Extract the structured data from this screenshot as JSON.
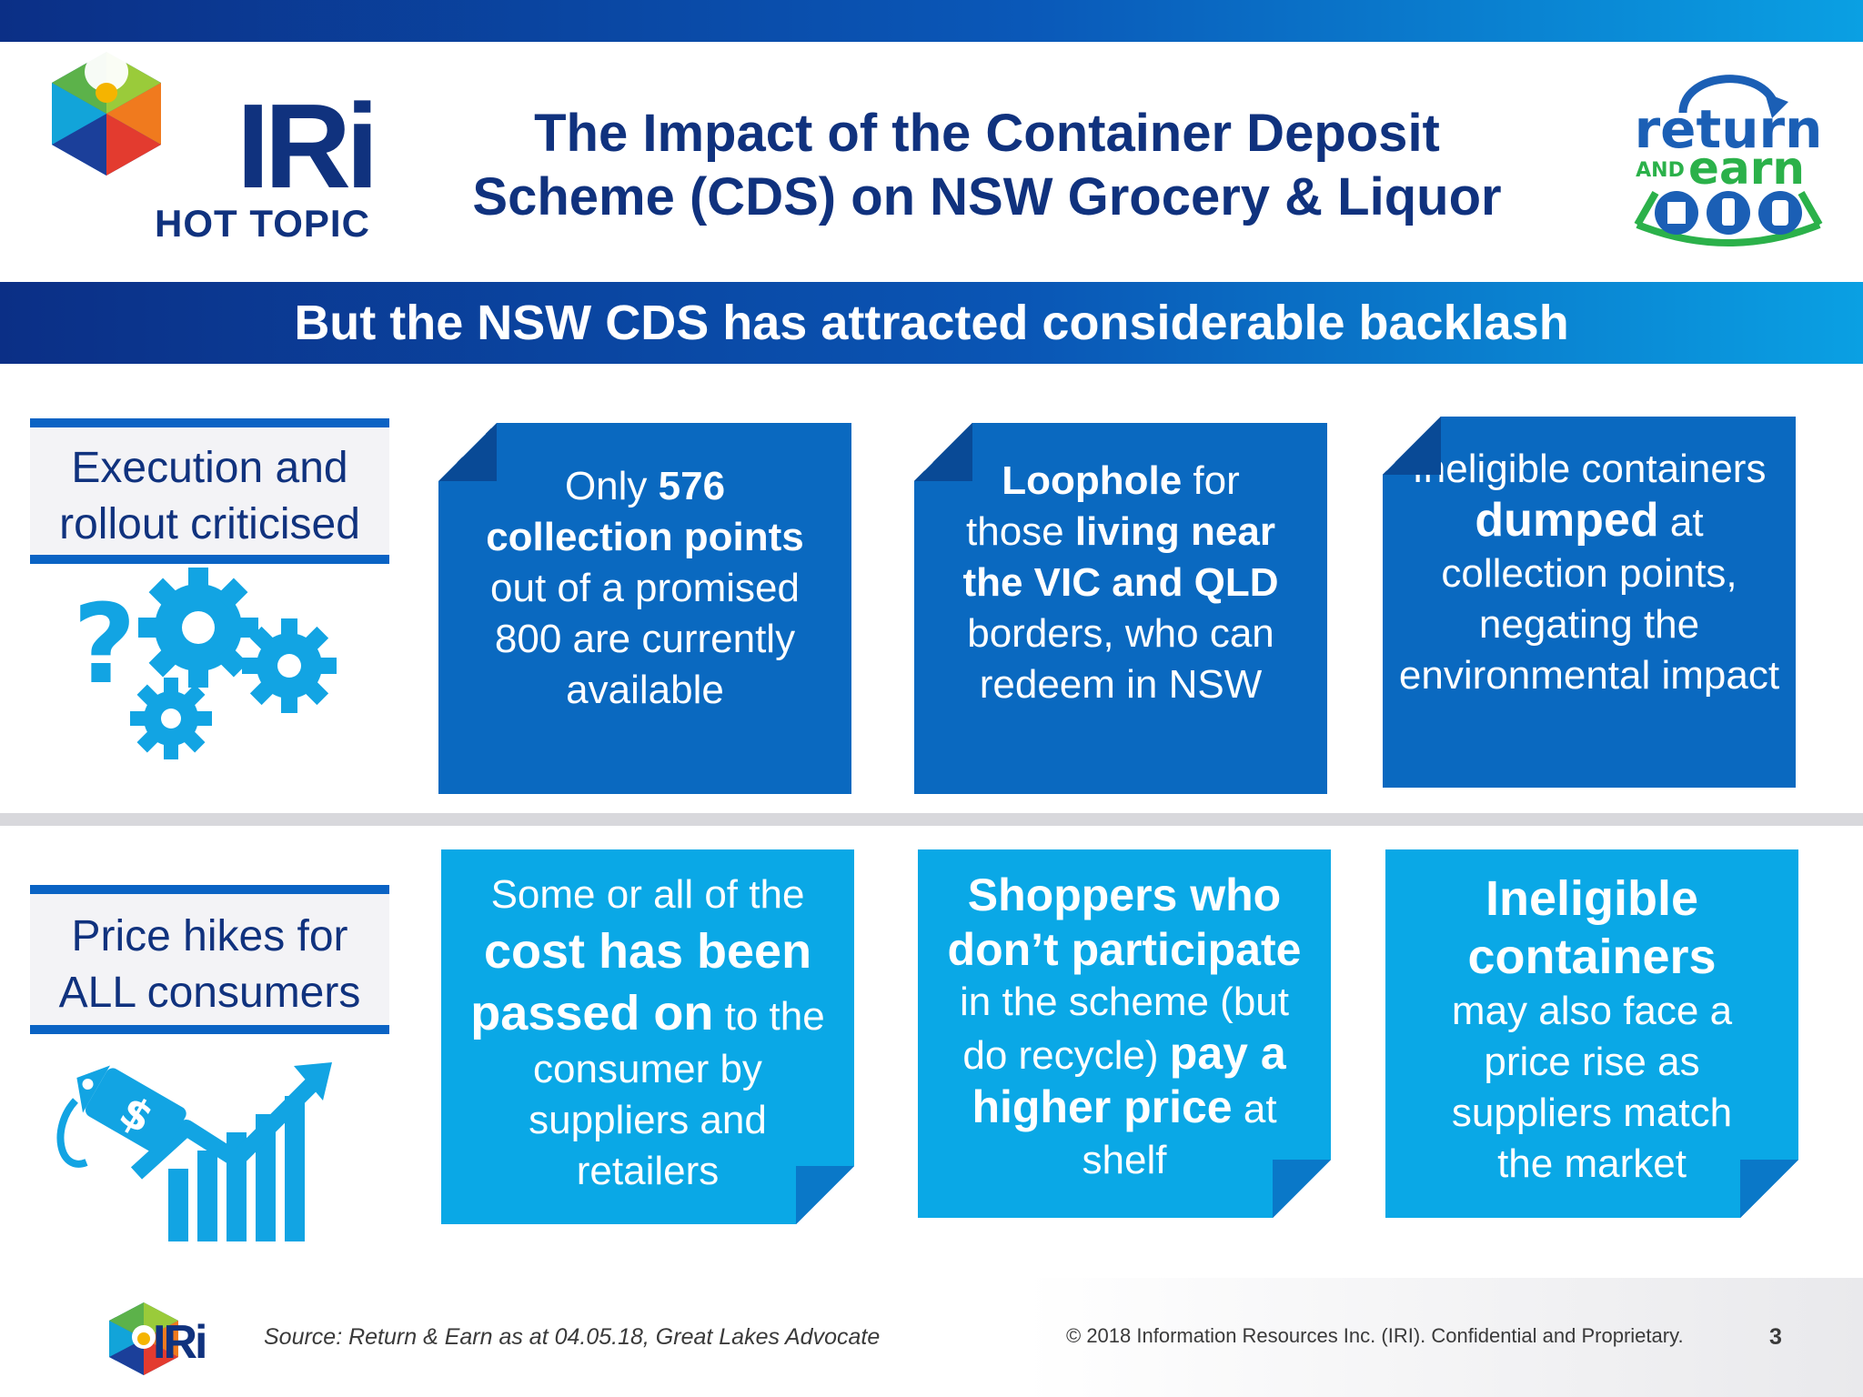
{
  "header": {
    "logo_text": "IRi",
    "logo_subtitle": "HOT TOPIC",
    "title_line1": "The Impact of the Container Deposit",
    "title_line2": "Scheme (CDS) on NSW Grocery & Liquor",
    "partner_logo": {
      "word1": "return",
      "word2": "AND",
      "word3": "earn"
    }
  },
  "banner": "But the NSW CDS has attracted considerable backlash",
  "rows": [
    {
      "label_line1": "Execution and",
      "label_line2": "rollout criticised",
      "illustration_icon": "gears-question-icon",
      "cards": [
        {
          "parts": [
            "Only ",
            "576",
            "collection points",
            "out of a promised",
            "800 are currently",
            "available"
          ]
        },
        {
          "parts": [
            "Loophole",
            " for",
            "those ",
            "living near",
            "the VIC and QLD",
            "borders, who can",
            "redeem in NSW"
          ]
        },
        {
          "parts": [
            "Ineligible containers",
            "dumped",
            " at",
            "collection points,",
            "negating the",
            "environmental impact"
          ]
        }
      ]
    },
    {
      "label_line1": "Price hikes for",
      "label_line2": "ALL consumers",
      "illustration_icon": "price-tag-chart-icon",
      "cards": [
        {
          "parts": [
            "Some or all of the",
            "cost has been",
            "passed on",
            " to the",
            "consumer by",
            "suppliers and",
            "retailers"
          ]
        },
        {
          "parts": [
            "Shoppers who",
            "don’t participate",
            "in the scheme (but",
            "do recycle) ",
            "pay a",
            "higher price",
            " at",
            "shelf"
          ]
        },
        {
          "parts": [
            "Ineligible",
            "containers",
            "may also face a",
            "price rise as",
            "suppliers match",
            "the market"
          ]
        }
      ]
    }
  ],
  "footer": {
    "logo_text": "IRi",
    "source": "Source: Return & Earn as at 04.05.18, Great Lakes Advocate",
    "copyright": "© 2018 Information Resources Inc. (IRI). Confidential and Proprietary.",
    "page_number": "3"
  },
  "colors": {
    "navy": "#10327e",
    "card_dark": "#0a69c0",
    "card_light": "#0aa8e6",
    "accent": "#0aa0e3",
    "partner_green": "#2bb14a"
  }
}
